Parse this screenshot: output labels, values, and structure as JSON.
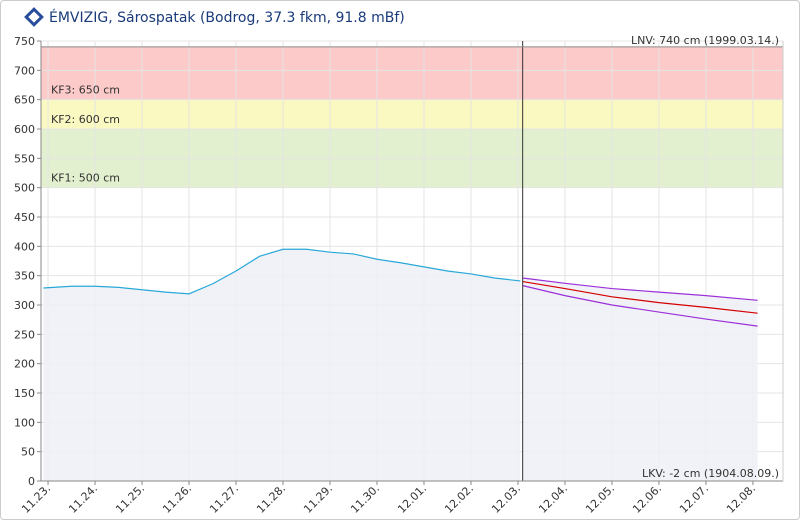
{
  "chart_data": {
    "type": "line",
    "title": "ÉMVIZIG, Sárospatak (Bodrog, 37.3 fkm, 91.8 mBf)",
    "ylim": [
      0,
      750
    ],
    "yticks": [
      0,
      50,
      100,
      150,
      200,
      250,
      300,
      350,
      400,
      450,
      500,
      550,
      600,
      650,
      700,
      750
    ],
    "xlim": [
      -0.15,
      15.64
    ],
    "xticks": [
      {
        "value": 0,
        "label": "11.23."
      },
      {
        "value": 1,
        "label": "11.24."
      },
      {
        "value": 2,
        "label": "11.25."
      },
      {
        "value": 3,
        "label": "11.26."
      },
      {
        "value": 4,
        "label": "11.27."
      },
      {
        "value": 5,
        "label": "11.28."
      },
      {
        "value": 6,
        "label": "11.29."
      },
      {
        "value": 7,
        "label": "11.30."
      },
      {
        "value": 8,
        "label": "12.01."
      },
      {
        "value": 9,
        "label": "12.02."
      },
      {
        "value": 10,
        "label": "12.03."
      },
      {
        "value": 11,
        "label": "12.04."
      },
      {
        "value": 12,
        "label": "12.05."
      },
      {
        "value": 13,
        "label": "12.06."
      },
      {
        "value": 14,
        "label": "12.07."
      },
      {
        "value": 15,
        "label": "12.08."
      }
    ],
    "grid": true,
    "bands": [
      {
        "label": "KF1: 500 cm",
        "from": 500,
        "to": 600,
        "color": "#e3f0cf"
      },
      {
        "label": "KF2: 600 cm",
        "from": 600,
        "to": 650,
        "color": "#fbf9c2"
      },
      {
        "label": "KF3: 650 cm",
        "from": 650,
        "to": 740,
        "color": "#fdcaca"
      }
    ],
    "lnv": {
      "label": "LNV: 740 cm (1999.03.14.)",
      "value": 740
    },
    "lkv": {
      "label": "LKV: -2 cm (1904.08.09.)",
      "value": -2
    },
    "marker_x": 10.1,
    "series": [
      {
        "color": "#29a8d8",
        "area": true,
        "x": [
          -0.1,
          0.5,
          1,
          1.5,
          2,
          2.5,
          3,
          3.5,
          4,
          4.5,
          5,
          5.5,
          6,
          6.5,
          7,
          7.5,
          8,
          8.5,
          9,
          9.5,
          10.05
        ],
        "values": [
          329,
          332,
          332,
          330,
          326,
          322,
          319,
          336,
          358,
          383,
          395,
          395,
          390,
          387,
          378,
          372,
          365,
          358,
          353,
          346,
          341
        ]
      },
      {
        "color": "#9b30d9",
        "area": true,
        "x": [
          10.1,
          11,
          12,
          13,
          14,
          15.1
        ],
        "values": [
          346,
          337,
          328,
          322,
          316,
          308
        ]
      },
      {
        "color": "#d40000",
        "x": [
          10.1,
          11,
          12,
          13,
          14,
          15.1
        ],
        "values": [
          340,
          328,
          314,
          304,
          296,
          286
        ]
      },
      {
        "color": "#9b30d9",
        "x": [
          10.1,
          11,
          12,
          13,
          14,
          15.1
        ],
        "values": [
          333,
          316,
          300,
          288,
          276,
          264
        ]
      }
    ]
  }
}
